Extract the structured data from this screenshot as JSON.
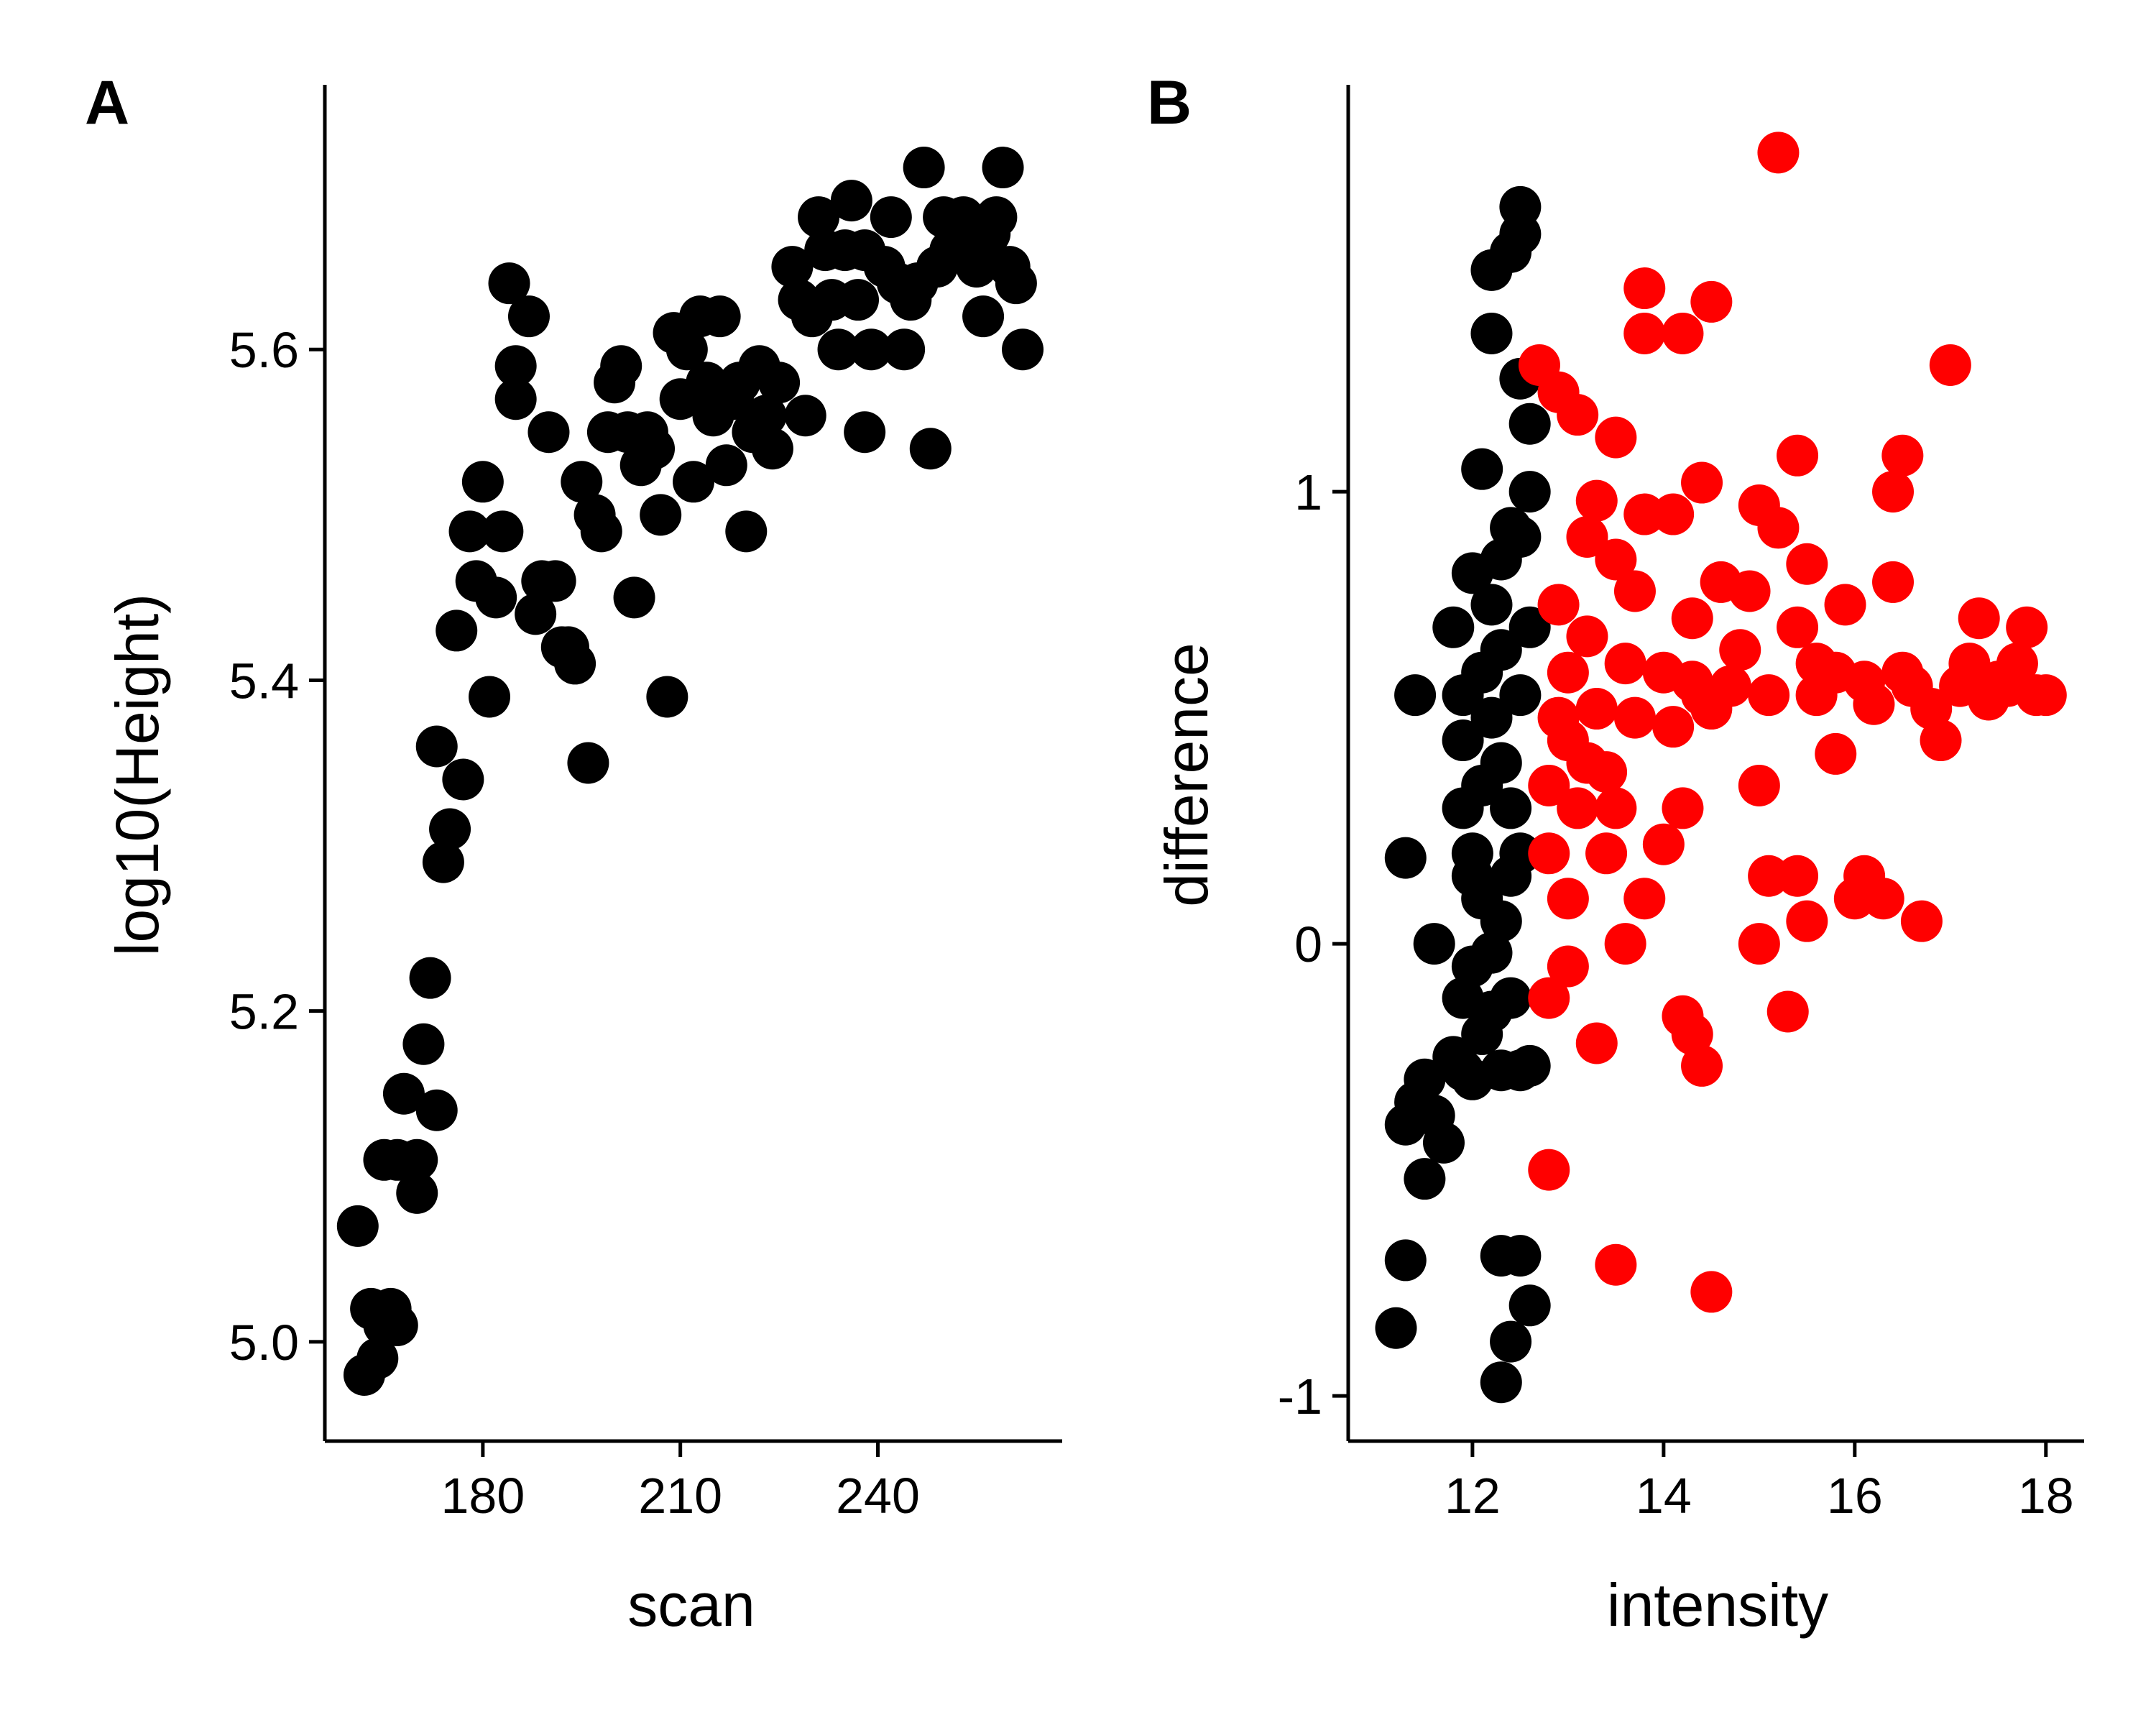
{
  "chart_data": [
    {
      "type": "scatter",
      "panel": "A",
      "xlabel": "scan",
      "ylabel": "log10(Height)",
      "xlim": [
        156,
        268
      ],
      "ylim": [
        4.94,
        5.76
      ],
      "xticks": [
        180,
        210,
        240
      ],
      "yticks": [
        5.0,
        5.2,
        5.4,
        5.6
      ],
      "ytick_labels": [
        "5.0",
        "5.2",
        "5.4",
        "5.6"
      ],
      "point_color": "#000000",
      "grid": false,
      "legend": "none",
      "points": [
        [
          161,
          5.07
        ],
        [
          162,
          4.98
        ],
        [
          163,
          5.02
        ],
        [
          164,
          4.99
        ],
        [
          165,
          5.01
        ],
        [
          166,
          5.02
        ],
        [
          167,
          5.01
        ],
        [
          165,
          5.11
        ],
        [
          167,
          5.11
        ],
        [
          168,
          5.15
        ],
        [
          170,
          5.11
        ],
        [
          170,
          5.09
        ],
        [
          171,
          5.18
        ],
        [
          172,
          5.22
        ],
        [
          173,
          5.14
        ],
        [
          174,
          5.29
        ],
        [
          175,
          5.31
        ],
        [
          173,
          5.36
        ],
        [
          177,
          5.34
        ],
        [
          176,
          5.43
        ],
        [
          178,
          5.49
        ],
        [
          179,
          5.46
        ],
        [
          180,
          5.52
        ],
        [
          181,
          5.39
        ],
        [
          182,
          5.45
        ],
        [
          183,
          5.49
        ],
        [
          184,
          5.64
        ],
        [
          185,
          5.59
        ],
        [
          185,
          5.57
        ],
        [
          187,
          5.62
        ],
        [
          188,
          5.44
        ],
        [
          189,
          5.46
        ],
        [
          190,
          5.55
        ],
        [
          191,
          5.46
        ],
        [
          192,
          5.42
        ],
        [
          193,
          5.42
        ],
        [
          194,
          5.41
        ],
        [
          195,
          5.52
        ],
        [
          196,
          5.35
        ],
        [
          197,
          5.5
        ],
        [
          198,
          5.49
        ],
        [
          199,
          5.55
        ],
        [
          200,
          5.58
        ],
        [
          201,
          5.59
        ],
        [
          202,
          5.55
        ],
        [
          203,
          5.45
        ],
        [
          204,
          5.53
        ],
        [
          205,
          5.55
        ],
        [
          206,
          5.54
        ],
        [
          207,
          5.5
        ],
        [
          208,
          5.39
        ],
        [
          209,
          5.61
        ],
        [
          210,
          5.57
        ],
        [
          211,
          5.6
        ],
        [
          212,
          5.52
        ],
        [
          213,
          5.62
        ],
        [
          214,
          5.58
        ],
        [
          215,
          5.56
        ],
        [
          216,
          5.62
        ],
        [
          217,
          5.53
        ],
        [
          218,
          5.57
        ],
        [
          219,
          5.58
        ],
        [
          220,
          5.49
        ],
        [
          221,
          5.55
        ],
        [
          222,
          5.59
        ],
        [
          223,
          5.56
        ],
        [
          224,
          5.54
        ],
        [
          225,
          5.58
        ],
        [
          227,
          5.65
        ],
        [
          228,
          5.63
        ],
        [
          229,
          5.56
        ],
        [
          230,
          5.62
        ],
        [
          231,
          5.68
        ],
        [
          232,
          5.66
        ],
        [
          233,
          5.63
        ],
        [
          234,
          5.6
        ],
        [
          235,
          5.66
        ],
        [
          236,
          5.69
        ],
        [
          237,
          5.63
        ],
        [
          238,
          5.55
        ],
        [
          238,
          5.66
        ],
        [
          239,
          5.6
        ],
        [
          241,
          5.65
        ],
        [
          242,
          5.68
        ],
        [
          243,
          5.64
        ],
        [
          244,
          5.6
        ],
        [
          245,
          5.63
        ],
        [
          246,
          5.64
        ],
        [
          247,
          5.71
        ],
        [
          248,
          5.54
        ],
        [
          249,
          5.65
        ],
        [
          250,
          5.68
        ],
        [
          251,
          5.66
        ],
        [
          252,
          5.66
        ],
        [
          253,
          5.68
        ],
        [
          254,
          5.67
        ],
        [
          255,
          5.65
        ],
        [
          256,
          5.62
        ],
        [
          257,
          5.67
        ],
        [
          258,
          5.68
        ],
        [
          259,
          5.71
        ],
        [
          260,
          5.65
        ],
        [
          261,
          5.64
        ],
        [
          262,
          5.6
        ]
      ]
    },
    {
      "type": "scatter",
      "panel": "B",
      "xlabel": "intensity",
      "ylabel": "difference",
      "xlim": [
        10.7,
        18.4
      ],
      "ylim": [
        -1.1,
        1.9
      ],
      "xticks": [
        12,
        14,
        16,
        18
      ],
      "yticks": [
        -1,
        0,
        1
      ],
      "ytick_labels": [
        "-1",
        "0",
        "1"
      ],
      "grid": false,
      "legend": "none",
      "series": [
        {
          "color": "#000000",
          "points": [
            [
              11.2,
              -0.85
            ],
            [
              11.3,
              -0.7
            ],
            [
              11.3,
              -0.4
            ],
            [
              11.4,
              -0.35
            ],
            [
              11.5,
              -0.3
            ],
            [
              11.5,
              -0.52
            ],
            [
              11.6,
              -0.38
            ],
            [
              11.7,
              -0.44
            ],
            [
              11.8,
              -0.25
            ],
            [
              11.9,
              -0.28
            ],
            [
              12.0,
              -0.3
            ],
            [
              12.1,
              -0.2
            ],
            [
              12.2,
              -0.15
            ],
            [
              12.3,
              -0.28
            ],
            [
              12.5,
              -0.28
            ],
            [
              12.6,
              -0.27
            ],
            [
              12.3,
              -0.69
            ],
            [
              12.5,
              -0.69
            ],
            [
              12.6,
              -0.8
            ],
            [
              12.4,
              -0.88
            ],
            [
              12.3,
              -0.97
            ],
            [
              11.4,
              0.55
            ],
            [
              11.3,
              0.19
            ],
            [
              11.6,
              0.0
            ],
            [
              11.8,
              0.7
            ],
            [
              11.9,
              0.55
            ],
            [
              12.0,
              0.82
            ],
            [
              12.1,
              1.05
            ],
            [
              12.2,
              1.35
            ],
            [
              12.2,
              1.49
            ],
            [
              12.4,
              1.53
            ],
            [
              12.5,
              1.57
            ],
            [
              12.5,
              1.63
            ],
            [
              12.5,
              1.25
            ],
            [
              12.6,
              1.15
            ],
            [
              12.4,
              0.92
            ],
            [
              12.3,
              0.85
            ],
            [
              12.2,
              0.75
            ],
            [
              11.9,
              0.45
            ],
            [
              11.9,
              0.3
            ],
            [
              12.0,
              0.2
            ],
            [
              12.1,
              0.1
            ],
            [
              12.0,
              -0.05
            ],
            [
              11.9,
              -0.12
            ],
            [
              12.4,
              -0.12
            ],
            [
              12.1,
              0.6
            ],
            [
              12.2,
              0.5
            ],
            [
              12.3,
              0.4
            ],
            [
              12.4,
              0.3
            ],
            [
              12.5,
              0.2
            ],
            [
              12.3,
              0.65
            ],
            [
              12.5,
              0.55
            ],
            [
              12.4,
              0.15
            ],
            [
              12.3,
              0.05
            ],
            [
              12.2,
              -0.02
            ],
            [
              12.1,
              0.35
            ],
            [
              12.6,
              0.7
            ],
            [
              12.5,
              0.9
            ],
            [
              12.6,
              1.0
            ],
            [
              12.0,
              0.15
            ]
          ]
        },
        {
          "color": "#ff0000",
          "points": [
            [
              15.2,
              1.75
            ],
            [
              13.8,
              1.45
            ],
            [
              14.5,
              1.42
            ],
            [
              13.8,
              1.35
            ],
            [
              14.2,
              1.35
            ],
            [
              17.0,
              1.28
            ],
            [
              12.7,
              1.28
            ],
            [
              12.9,
              1.22
            ],
            [
              13.1,
              1.17
            ],
            [
              13.5,
              1.12
            ],
            [
              15.4,
              1.08
            ],
            [
              16.5,
              1.08
            ],
            [
              16.4,
              1.0
            ],
            [
              15.0,
              0.97
            ],
            [
              15.2,
              0.92
            ],
            [
              14.4,
              1.02
            ],
            [
              15.5,
              0.84
            ],
            [
              16.4,
              0.8
            ],
            [
              15.9,
              0.75
            ],
            [
              13.0,
              0.6
            ],
            [
              12.9,
              0.5
            ],
            [
              13.2,
              0.4
            ],
            [
              13.5,
              0.3
            ],
            [
              13.4,
              0.2
            ],
            [
              13.8,
              0.1
            ],
            [
              13.6,
              0.0
            ],
            [
              13.0,
              -0.05
            ],
            [
              12.8,
              -0.12
            ],
            [
              13.3,
              -0.22
            ],
            [
              14.2,
              -0.16
            ],
            [
              14.3,
              -0.2
            ],
            [
              14.4,
              -0.27
            ],
            [
              15.3,
              -0.15
            ],
            [
              12.8,
              -0.5
            ],
            [
              13.5,
              -0.71
            ],
            [
              14.5,
              -0.77
            ],
            [
              15.0,
              0.0
            ],
            [
              15.1,
              0.15
            ],
            [
              15.4,
              0.15
            ],
            [
              15.5,
              0.05
            ],
            [
              16.0,
              0.1
            ],
            [
              16.1,
              0.15
            ],
            [
              16.3,
              0.1
            ],
            [
              16.7,
              0.05
            ],
            [
              15.0,
              0.35
            ],
            [
              15.8,
              0.42
            ],
            [
              16.9,
              0.45
            ],
            [
              17.3,
              0.72
            ],
            [
              17.8,
              0.7
            ],
            [
              17.5,
              0.58
            ],
            [
              17.9,
              0.55
            ],
            [
              18.0,
              0.55
            ],
            [
              17.7,
              0.62
            ],
            [
              17.6,
              0.57
            ],
            [
              13.2,
              0.9
            ],
            [
              13.5,
              0.85
            ],
            [
              13.8,
              0.95
            ],
            [
              14.1,
              0.95
            ],
            [
              14.6,
              0.8
            ],
            [
              14.9,
              0.78
            ],
            [
              15.4,
              0.7
            ],
            [
              15.8,
              0.6
            ],
            [
              16.1,
              0.58
            ],
            [
              16.6,
              0.57
            ],
            [
              17.1,
              0.57
            ],
            [
              12.9,
              0.75
            ],
            [
              13.2,
              0.68
            ],
            [
              13.6,
              0.62
            ],
            [
              14.0,
              0.6
            ],
            [
              14.3,
              0.58
            ],
            [
              14.7,
              0.57
            ],
            [
              15.1,
              0.55
            ],
            [
              13.0,
              0.45
            ],
            [
              13.3,
              0.52
            ],
            [
              13.7,
              0.5
            ],
            [
              14.1,
              0.48
            ],
            [
              14.5,
              0.52
            ],
            [
              12.8,
              0.35
            ],
            [
              13.1,
              0.3
            ],
            [
              13.4,
              0.38
            ],
            [
              14.0,
              0.22
            ],
            [
              14.2,
              0.3
            ],
            [
              12.8,
              0.2
            ],
            [
              13.0,
              0.1
            ],
            [
              14.4,
              0.55
            ],
            [
              15.6,
              0.55
            ],
            [
              16.2,
              0.53
            ],
            [
              16.8,
              0.52
            ],
            [
              17.4,
              0.54
            ],
            [
              13.3,
              0.98
            ],
            [
              13.7,
              0.78
            ],
            [
              14.3,
              0.72
            ],
            [
              14.8,
              0.65
            ],
            [
              15.6,
              0.62
            ],
            [
              16.5,
              0.6
            ],
            [
              17.2,
              0.62
            ]
          ]
        }
      ]
    }
  ]
}
